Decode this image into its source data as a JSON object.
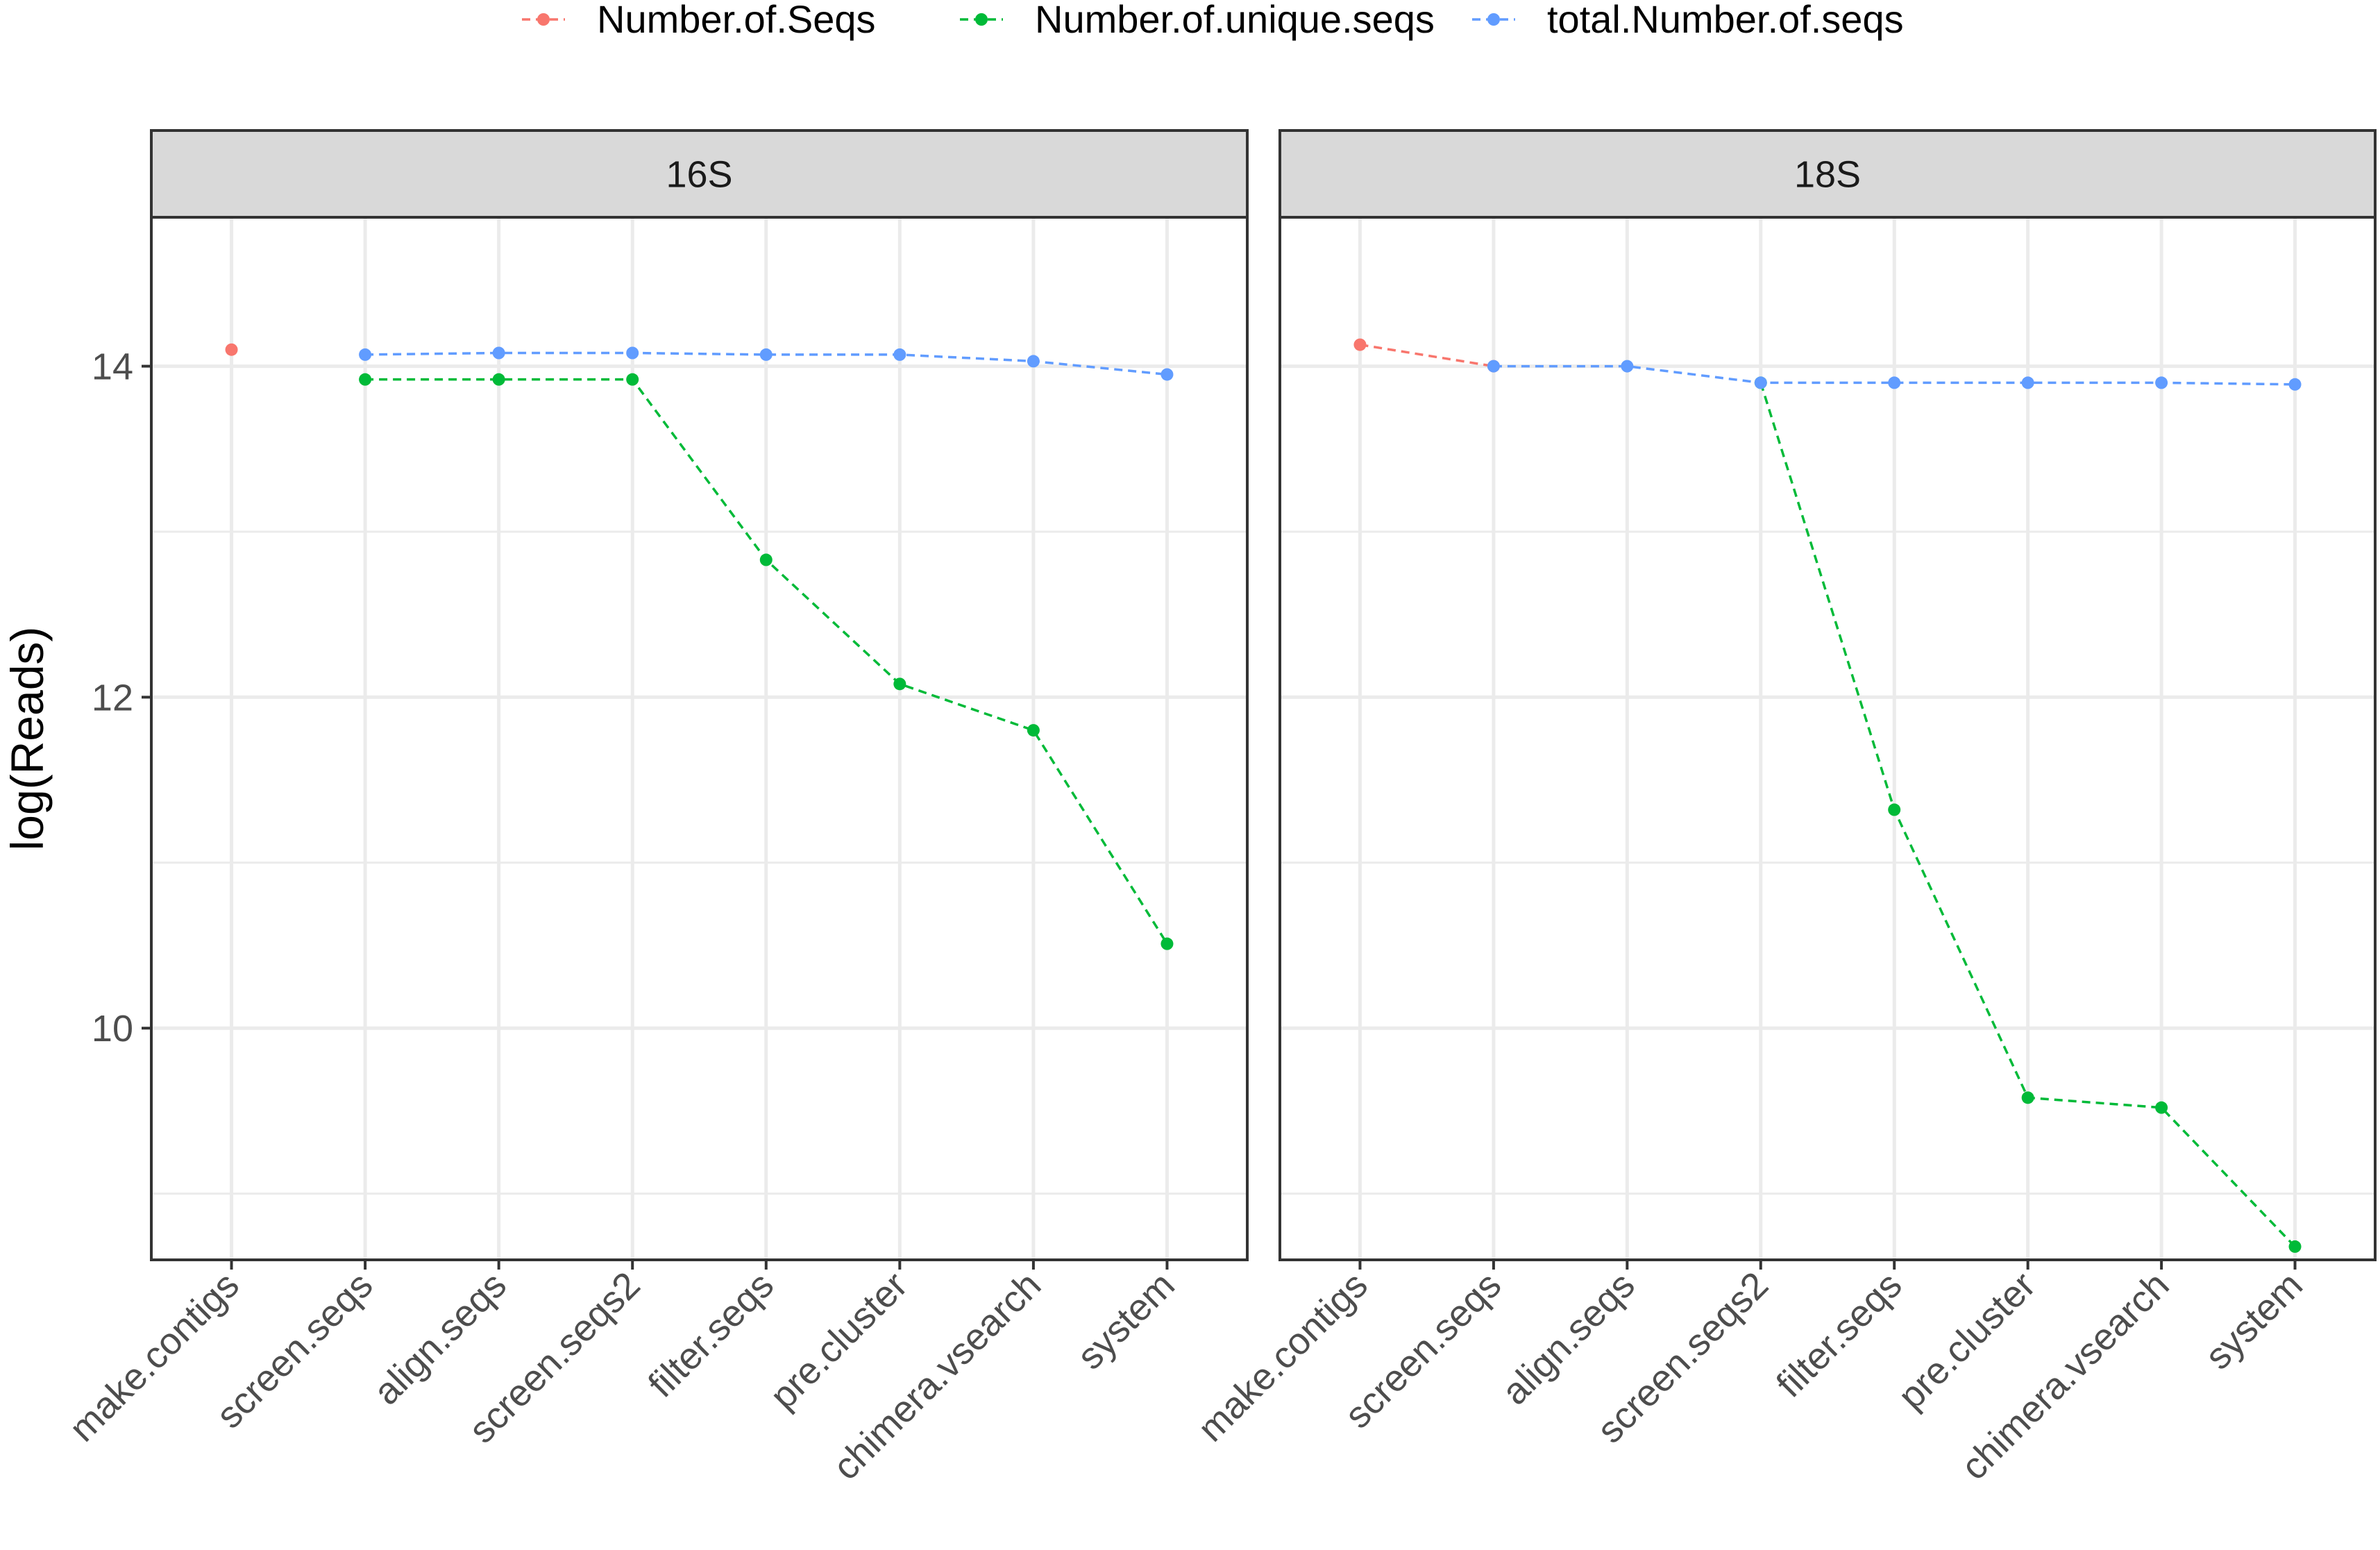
{
  "chart_data": {
    "type": "line",
    "ylabel": "log(Reads)",
    "ylim": [
      8.6,
      14.9
    ],
    "yticks": [
      10,
      12,
      14
    ],
    "categories": [
      "make.contigs",
      "screen.seqs",
      "align.seqs",
      "screen.seqs2",
      "filter.seqs",
      "pre.cluster",
      "chimera.vsearch",
      "system"
    ],
    "legend": {
      "placement": "top",
      "entries": [
        {
          "label": "Number.of.Seqs",
          "color": "#F8766D"
        },
        {
          "label": "Number.of.unique.seqs",
          "color": "#00BA38"
        },
        {
          "label": "total.Number.of.seqs",
          "color": "#619CFF"
        }
      ]
    },
    "panels": [
      {
        "label": "16S",
        "series": [
          {
            "name": "Number.of.Seqs",
            "color": "#F8766D",
            "values": [
              14.1,
              null,
              null,
              null,
              null,
              null,
              null,
              null
            ]
          },
          {
            "name": "Number.of.unique.seqs",
            "color": "#00BA38",
            "values": [
              null,
              13.92,
              13.92,
              13.92,
              12.83,
              12.08,
              11.8,
              10.51
            ]
          },
          {
            "name": "total.Number.of.seqs",
            "color": "#619CFF",
            "values": [
              null,
              14.07,
              14.08,
              14.08,
              14.07,
              14.07,
              14.03,
              13.95
            ]
          }
        ]
      },
      {
        "label": "18S",
        "series": [
          {
            "name": "Number.of.Seqs",
            "color": "#F8766D",
            "values": [
              14.13,
              14.0,
              null,
              null,
              null,
              null,
              null,
              null
            ]
          },
          {
            "name": "Number.of.unique.seqs",
            "color": "#00BA38",
            "values": [
              null,
              null,
              null,
              13.9,
              11.32,
              9.58,
              9.52,
              8.68
            ]
          },
          {
            "name": "total.Number.of.seqs",
            "color": "#619CFF",
            "values": [
              null,
              14.0,
              14.0,
              13.9,
              13.9,
              13.9,
              13.9,
              13.89
            ]
          }
        ]
      }
    ],
    "grid": true
  }
}
